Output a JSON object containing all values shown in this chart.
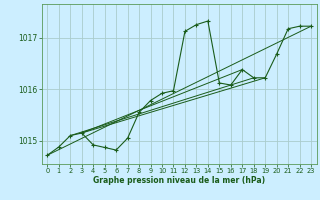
{
  "title": "Graphe pression niveau de la mer (hPa)",
  "background_color": "#cceeff",
  "grid_color": "#aacccc",
  "line_color": "#1a5c1a",
  "marker_color": "#1a5c1a",
  "xlim": [
    -0.5,
    23.5
  ],
  "ylim": [
    1014.55,
    1017.65
  ],
  "yticks": [
    1015,
    1016,
    1017
  ],
  "xticks": [
    0,
    1,
    2,
    3,
    4,
    5,
    6,
    7,
    8,
    9,
    10,
    11,
    12,
    13,
    14,
    15,
    16,
    17,
    18,
    19,
    20,
    21,
    22,
    23
  ],
  "series": {
    "main": [
      [
        0,
        1014.72
      ],
      [
        1,
        1014.88
      ],
      [
        2,
        1015.1
      ],
      [
        3,
        1015.15
      ],
      [
        4,
        1014.92
      ],
      [
        5,
        1014.87
      ],
      [
        6,
        1014.82
      ],
      [
        7,
        1015.05
      ],
      [
        8,
        1015.55
      ],
      [
        9,
        1015.78
      ],
      [
        10,
        1015.92
      ],
      [
        11,
        1015.97
      ],
      [
        12,
        1017.12
      ],
      [
        13,
        1017.25
      ],
      [
        14,
        1017.32
      ],
      [
        15,
        1016.12
      ],
      [
        16,
        1016.08
      ],
      [
        17,
        1016.38
      ],
      [
        18,
        1016.22
      ],
      [
        19,
        1016.22
      ],
      [
        20,
        1016.68
      ],
      [
        21,
        1017.17
      ],
      [
        22,
        1017.22
      ],
      [
        23,
        1017.22
      ]
    ],
    "line2": [
      [
        0,
        1014.72
      ],
      [
        23,
        1017.22
      ]
    ],
    "line3": [
      [
        2,
        1015.1
      ],
      [
        18,
        1016.22
      ]
    ],
    "line4": [
      [
        3,
        1015.15
      ],
      [
        19,
        1016.22
      ]
    ],
    "line5": [
      [
        3,
        1015.15
      ],
      [
        17,
        1016.38
      ]
    ]
  }
}
